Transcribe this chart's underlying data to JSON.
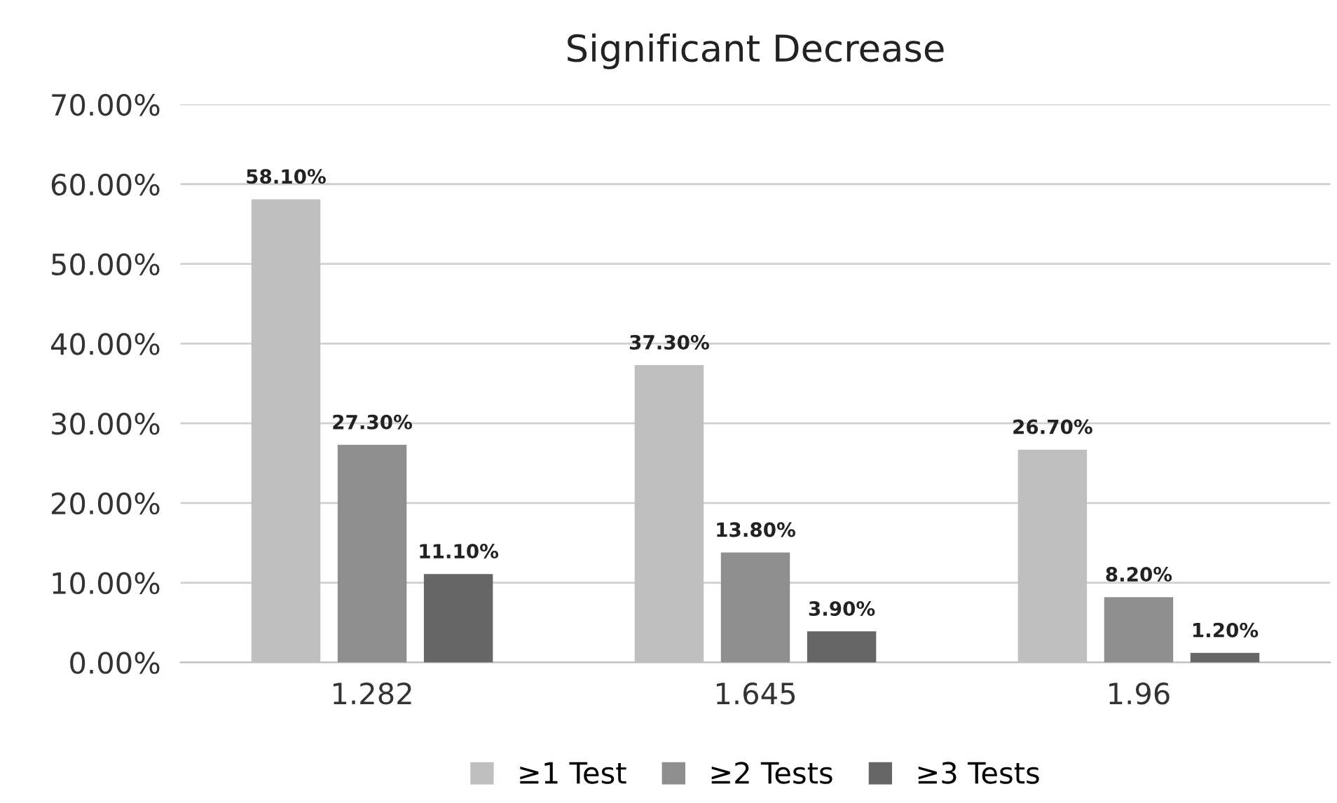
{
  "chart_data": {
    "type": "bar",
    "title": "Significant Decrease",
    "categories": [
      "1.282",
      "1.645",
      "1.96"
    ],
    "series": [
      {
        "name": "≥1 Test",
        "color": "#bfbfbf",
        "values": [
          58.1,
          37.3,
          26.7
        ],
        "value_labels": [
          "58.10%",
          "37.30%",
          "26.70%"
        ]
      },
      {
        "name": "≥2 Tests",
        "color": "#8e8e8e",
        "values": [
          27.3,
          13.8,
          8.2
        ],
        "value_labels": [
          "27.30%",
          "13.80%",
          "8.20%"
        ]
      },
      {
        "name": "≥3 Tests",
        "color": "#666666",
        "values": [
          11.1,
          3.9,
          1.2
        ],
        "value_labels": [
          "11.10%",
          "3.90%",
          "1.20%"
        ]
      }
    ],
    "ylim": [
      0,
      70
    ],
    "yticks": [
      {
        "value": 0,
        "label": "0.00%"
      },
      {
        "value": 10,
        "label": "10.00%"
      },
      {
        "value": 20,
        "label": "20.00%"
      },
      {
        "value": 30,
        "label": "30.00%"
      },
      {
        "value": 40,
        "label": "40.00%"
      },
      {
        "value": 50,
        "label": "50.00%"
      },
      {
        "value": 60,
        "label": "60.00%"
      },
      {
        "value": 70,
        "label": "70.00%"
      }
    ],
    "grid": "y",
    "legend": "bottom"
  }
}
